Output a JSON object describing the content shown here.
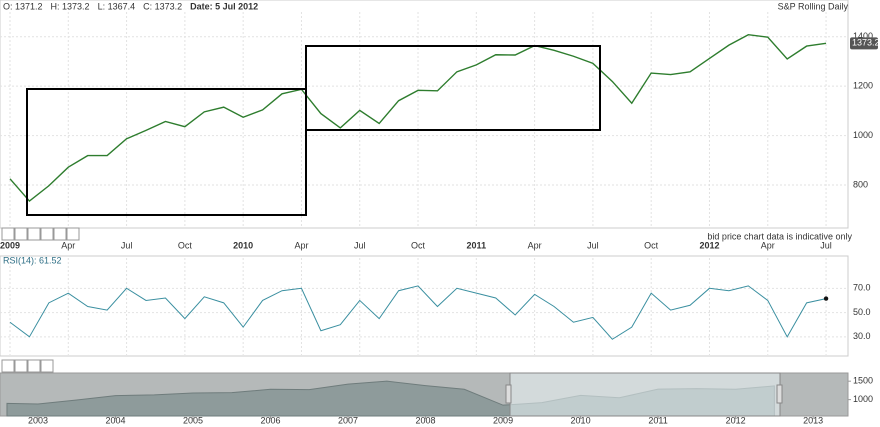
{
  "header": {
    "items": [
      "O: 1371.2",
      "H: 1373.2",
      "L: 1367.4",
      "C: 1373.2",
      "Date: 5 Jul 2012"
    ],
    "title": "S&P Rolling Daily",
    "disclaimer": "bid price chart data is indicative only"
  },
  "chart_data": [
    {
      "type": "line",
      "color": "#2e7d2e",
      "last_label": "1373.2",
      "categories": [
        "2009",
        null,
        null,
        "Apr",
        null,
        null,
        "Jul",
        null,
        null,
        "Oct",
        null,
        null,
        "2010",
        null,
        null,
        "Apr",
        null,
        null,
        "Jul",
        null,
        null,
        "Oct",
        null,
        null,
        "2011",
        null,
        null,
        "Apr",
        null,
        null,
        "Jul",
        null,
        null,
        "Oct",
        null,
        null,
        "2012",
        null,
        null,
        "Apr",
        null,
        null,
        "Jul"
      ],
      "values": [
        825,
        735,
        797,
        872,
        919,
        919,
        987,
        1021,
        1057,
        1036,
        1096,
        1115,
        1074,
        1104,
        1169,
        1187,
        1089,
        1031,
        1102,
        1049,
        1141,
        1183,
        1181,
        1258,
        1286,
        1327,
        1326,
        1364,
        1345,
        1321,
        1292,
        1219,
        1131,
        1253,
        1247,
        1258,
        1312,
        1366,
        1408,
        1398,
        1310,
        1362,
        1373.2
      ],
      "ylim": [
        626,
        1500
      ],
      "yticks": [
        800,
        1000,
        1200,
        1400
      ],
      "grid": true
    },
    {
      "type": "line",
      "series": [
        {
          "name": "RSI(14): 61.52",
          "color": "#3a8fa0",
          "values": [
            42,
            30,
            58,
            66,
            55,
            52,
            70,
            60,
            62,
            45,
            63,
            58,
            38,
            60,
            68,
            70,
            35,
            40,
            60,
            45,
            68,
            72,
            55,
            70,
            66,
            62,
            48,
            65,
            55,
            42,
            46,
            28,
            38,
            66,
            52,
            56,
            70,
            68,
            72,
            60,
            30,
            58,
            61.52
          ]
        }
      ],
      "ylim": [
        15,
        95
      ],
      "yticks": [
        {
          "value": 70,
          "label": "70.0"
        },
        {
          "value": 50,
          "label": "50.0"
        },
        {
          "value": 30,
          "label": "30.0"
        }
      ],
      "grid": true
    },
    {
      "type": "area",
      "color": "#8e9b9b",
      "x": [
        2002.6,
        2003,
        2003.5,
        2004,
        2004.5,
        2005,
        2005.5,
        2006,
        2006.5,
        2007,
        2007.5,
        2008,
        2008.5,
        2009,
        2009.5,
        2010,
        2010.5,
        2011,
        2011.5,
        2012,
        2012.5
      ],
      "values": [
        900,
        880,
        990,
        1110,
        1130,
        1180,
        1190,
        1280,
        1270,
        1420,
        1500,
        1380,
        1280,
        850,
        920,
        1115,
        1050,
        1285,
        1300,
        1280,
        1373
      ],
      "xlim": [
        2002.51,
        2013.45
      ],
      "xticks": [
        2003,
        2004,
        2005,
        2006,
        2007,
        2008,
        2009,
        2010,
        2011,
        2012,
        2013
      ],
      "ylim": [
        556,
        1722
      ],
      "yticks": [
        1000,
        1500
      ]
    }
  ]
}
